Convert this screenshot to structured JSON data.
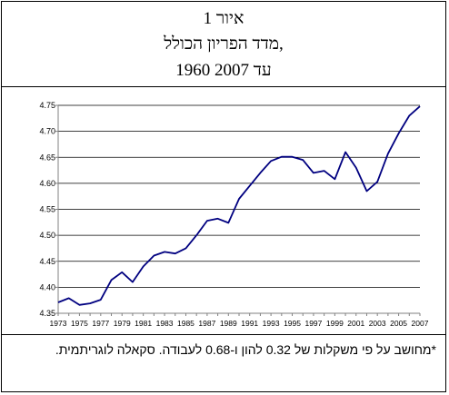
{
  "header": {
    "figure_label": "איור 1",
    "title": "מדד הפריון הכולל,",
    "subtitle": "1960 עד 2007"
  },
  "footnote": {
    "text": "*מחושב על פי משקלות של 0.32 להון ו-0.68 לעבודה. סקאלה לוגריתמית."
  },
  "colors": {
    "line": "#000080",
    "grid": "#000000",
    "axis": "#808080"
  },
  "chart_data": {
    "type": "line",
    "title": "",
    "xlabel": "",
    "ylabel": "",
    "x": [
      1973,
      1974,
      1975,
      1976,
      1977,
      1978,
      1979,
      1980,
      1981,
      1982,
      1983,
      1984,
      1985,
      1986,
      1987,
      1988,
      1989,
      1990,
      1991,
      1992,
      1993,
      1994,
      1995,
      1996,
      1997,
      1998,
      1999,
      2000,
      2001,
      2002,
      2003,
      2004,
      2005,
      2006,
      2007
    ],
    "series": [
      {
        "name": "",
        "values": [
          4.371,
          4.379,
          4.366,
          4.369,
          4.376,
          4.414,
          4.429,
          4.41,
          4.44,
          4.461,
          4.468,
          4.465,
          4.475,
          4.5,
          4.528,
          4.532,
          4.524,
          4.57,
          4.595,
          4.62,
          4.643,
          4.651,
          4.651,
          4.645,
          4.62,
          4.624,
          4.608,
          4.66,
          4.63,
          4.585,
          4.603,
          4.657,
          4.696,
          4.73,
          4.748
        ]
      }
    ],
    "xticks": [
      "1973",
      "1975",
      "1977",
      "1979",
      "1981",
      "1983",
      "1985",
      "1987",
      "1989",
      "1991",
      "1993",
      "1995",
      "1997",
      "1999",
      "2001",
      "2003",
      "2005",
      "2007"
    ],
    "yticks": [
      "4.35",
      "4.40",
      "4.45",
      "4.50",
      "4.55",
      "4.60",
      "4.65",
      "4.70",
      "4.75"
    ],
    "ylim": [
      4.35,
      4.75
    ],
    "xlim": [
      1973,
      2007
    ],
    "grid": true,
    "legend": "none"
  }
}
